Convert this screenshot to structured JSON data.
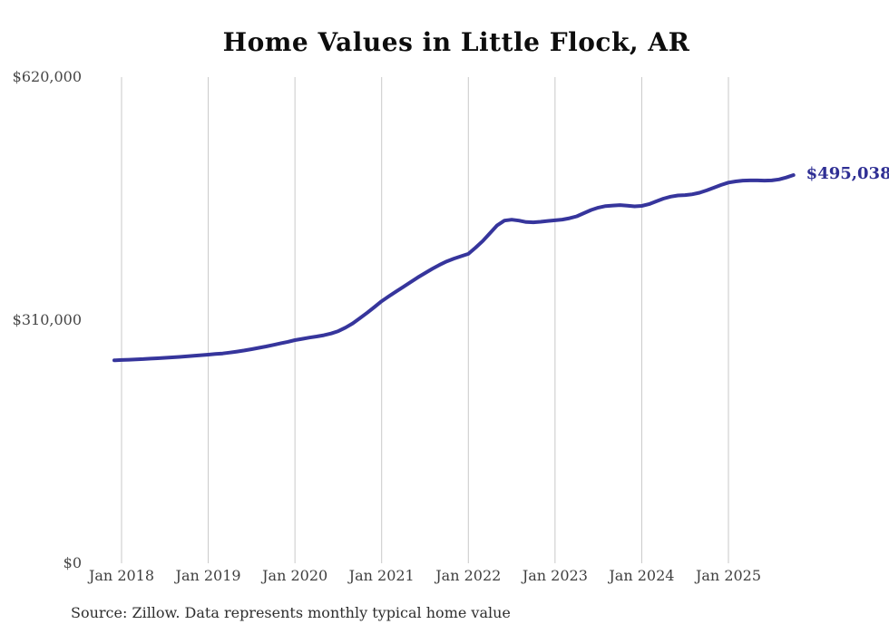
{
  "chart": {
    "title": "Home Values in Little Flock, AR",
    "end_label": "$495,038",
    "source_note": "Source: Zillow. Data represents monthly typical home value",
    "colors": {
      "line": "#36359c",
      "end_label": "#2f2f94",
      "gridline": "#c9c9c9",
      "title": "#0d0d0d",
      "tick": "#444444"
    }
  },
  "chart_data": {
    "type": "line",
    "title": "Home Values in Little Flock, AR",
    "series_name": "Monthly typical home value (ZHVI)",
    "unit": "USD",
    "ylim": [
      0,
      620000
    ],
    "y_ticks": [
      "$0",
      "$310,000",
      "$620,000"
    ],
    "x_ticks": [
      "Jan 2018",
      "Jan 2019",
      "Jan 2020",
      "Jan 2021",
      "Jan 2022",
      "Jan 2023",
      "Jan 2024",
      "Jan 2025"
    ],
    "grid": "vertical-only",
    "legend": "none",
    "last_point_label": "$495,038",
    "last_point_value": 495038,
    "source": "Source: Zillow. Data represents monthly typical home value",
    "x": [
      "2017-12",
      "2018-01",
      "2018-02",
      "2018-03",
      "2018-04",
      "2018-05",
      "2018-06",
      "2018-07",
      "2018-08",
      "2018-09",
      "2018-10",
      "2018-11",
      "2018-12",
      "2019-01",
      "2019-02",
      "2019-03",
      "2019-04",
      "2019-05",
      "2019-06",
      "2019-07",
      "2019-08",
      "2019-09",
      "2019-10",
      "2019-11",
      "2019-12",
      "2020-01",
      "2020-02",
      "2020-03",
      "2020-04",
      "2020-05",
      "2020-06",
      "2020-07",
      "2020-08",
      "2020-09",
      "2020-10",
      "2020-11",
      "2020-12",
      "2021-01",
      "2021-02",
      "2021-03",
      "2021-04",
      "2021-05",
      "2021-06",
      "2021-07",
      "2021-08",
      "2021-09",
      "2021-10",
      "2021-11",
      "2021-12",
      "2022-01",
      "2022-02",
      "2022-03",
      "2022-04",
      "2022-05",
      "2022-06",
      "2022-07",
      "2022-08",
      "2022-09",
      "2022-10",
      "2022-11",
      "2022-12",
      "2023-01",
      "2023-02",
      "2023-03",
      "2023-04",
      "2023-05",
      "2023-06",
      "2023-07",
      "2023-08",
      "2023-09",
      "2023-10",
      "2023-11",
      "2023-12",
      "2024-01",
      "2024-02",
      "2024-03",
      "2024-04",
      "2024-05",
      "2024-06",
      "2024-07",
      "2024-08",
      "2024-09",
      "2024-10",
      "2024-11",
      "2024-12",
      "2025-01",
      "2025-02",
      "2025-03",
      "2025-04",
      "2025-05",
      "2025-06",
      "2025-07",
      "2025-08",
      "2025-09",
      "2025-10"
    ],
    "values": [
      258800,
      259200,
      259600,
      260000,
      260400,
      260900,
      261400,
      262000,
      262600,
      263200,
      263900,
      264600,
      265300,
      266100,
      266800,
      267600,
      268700,
      270000,
      271400,
      273000,
      274700,
      276500,
      278400,
      280400,
      282400,
      284500,
      286200,
      287800,
      289200,
      290800,
      293000,
      296000,
      300500,
      306000,
      312500,
      319500,
      326800,
      334200,
      340500,
      346500,
      352500,
      358500,
      364500,
      370000,
      375500,
      380500,
      385000,
      388500,
      391500,
      394500,
      402500,
      411000,
      421000,
      431000,
      437000,
      438200,
      437000,
      435200,
      434800,
      435500,
      436500,
      437400,
      438300,
      440000,
      442500,
      446500,
      450500,
      453500,
      455500,
      456200,
      456800,
      456000,
      455200,
      455800,
      458000,
      461500,
      465000,
      467500,
      469000,
      469500,
      470500,
      472500,
      475500,
      479000,
      482500,
      485500,
      487000,
      488000,
      488300,
      488200,
      488000,
      488200,
      489500,
      492000,
      495038
    ]
  }
}
